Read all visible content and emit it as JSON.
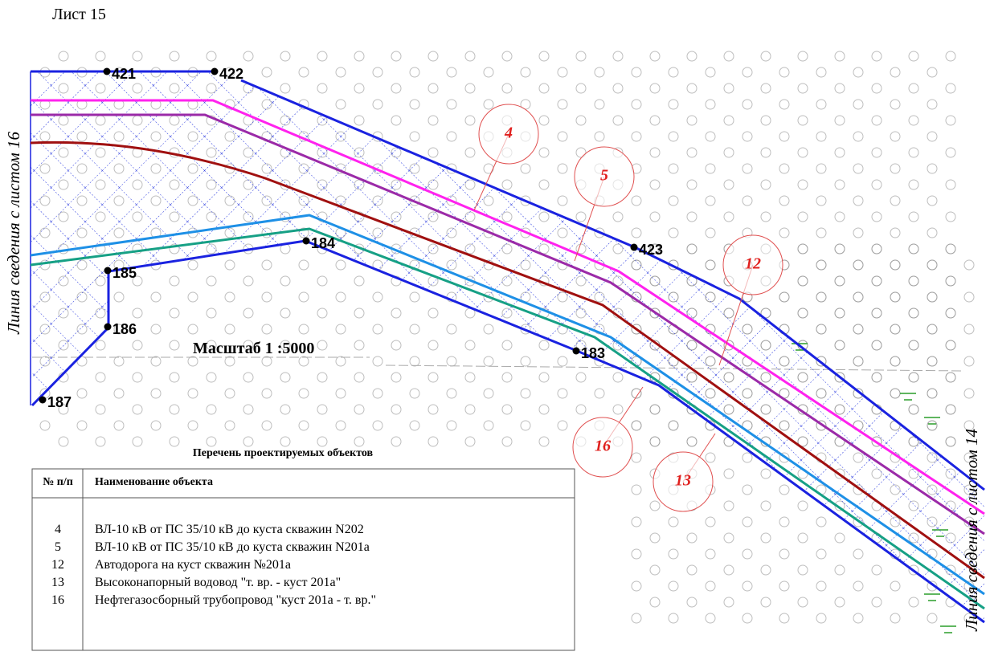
{
  "header": {
    "sheet": "Лист 15"
  },
  "edges": {
    "left": "Линия сведения с листом 16",
    "right": "Линия сведения с листом 14"
  },
  "points": [
    "421",
    "422",
    "423",
    "184",
    "185",
    "186",
    "187",
    "183"
  ],
  "callouts": [
    "4",
    "5",
    "12",
    "16",
    "13"
  ],
  "scale": "Масштаб 1 :5000",
  "table": {
    "title": "Перечень проектируемых объектов",
    "columns": [
      "№ п/п",
      "Наименование объекта"
    ],
    "rows": [
      [
        "4",
        "ВЛ-10 кВ от ПС 35/10 кВ до куста скважин N202"
      ],
      [
        "5",
        "ВЛ-10 кВ от ПС 35/10 кВ до куста скважин N201а"
      ],
      [
        "12",
        "Автодорога на куст скважин №201а"
      ],
      [
        "13",
        "Высоконапорный водовод \"т. вр. -  куст 201а\""
      ],
      [
        "16",
        "Нефтегазосборный трубопровод \"куст 201а - т. вр.\""
      ]
    ]
  }
}
